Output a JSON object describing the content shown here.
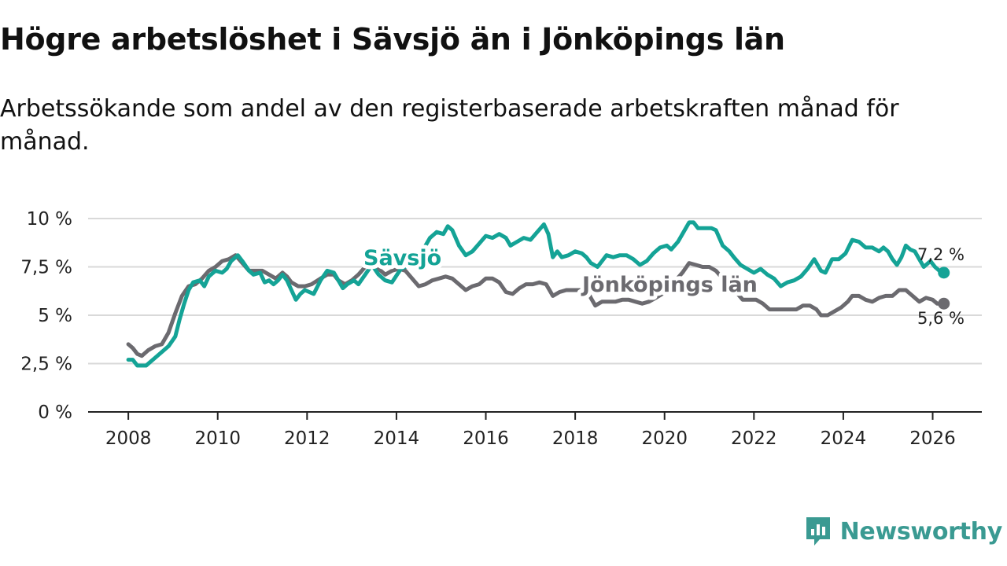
{
  "title": "Högre arbetslöshet i Sävsjö än i Jönköpings län",
  "subtitle": "Arbetssökande som andel av den registerbaserade arbetskraften månad för månad.",
  "brand": "Newsworthy",
  "colors": {
    "savsjo": "#14a396",
    "lan": "#6b6a6f",
    "brand": "#3a9a92"
  },
  "chart_data": {
    "type": "line",
    "title": "Högre arbetslöshet i Sävsjö än i Jönköpings län",
    "xlabel": "",
    "ylabel": "",
    "xlim": [
      2007.1,
      2027.1
    ],
    "ylim": [
      0,
      10
    ],
    "yticks": [
      0,
      2.5,
      5,
      7.5,
      10
    ],
    "ytick_labels": [
      "0 %",
      "2,5 %",
      "5 %",
      "7,5 %",
      "10 %"
    ],
    "xticks": [
      2008,
      2010,
      2012,
      2014,
      2016,
      2018,
      2020,
      2022,
      2024,
      2026
    ],
    "xtick_labels": [
      "2008",
      "2010",
      "2012",
      "2014",
      "2016",
      "2018",
      "2020",
      "2022",
      "2024",
      "2026"
    ],
    "grid": true,
    "series": [
      {
        "name": "Sävsjö",
        "key": "savsjo",
        "end_label": "7,2 %",
        "points": [
          [
            2008.0,
            2.7
          ],
          [
            2008.1,
            2.7
          ],
          [
            2008.2,
            2.4
          ],
          [
            2008.3,
            2.4
          ],
          [
            2008.4,
            2.4
          ],
          [
            2008.5,
            2.6
          ],
          [
            2008.6,
            2.8
          ],
          [
            2008.75,
            3.1
          ],
          [
            2008.9,
            3.4
          ],
          [
            2009.05,
            3.9
          ],
          [
            2009.15,
            4.8
          ],
          [
            2009.25,
            5.6
          ],
          [
            2009.35,
            6.3
          ],
          [
            2009.45,
            6.7
          ],
          [
            2009.6,
            6.8
          ],
          [
            2009.7,
            6.5
          ],
          [
            2009.8,
            7.0
          ],
          [
            2009.95,
            7.3
          ],
          [
            2010.1,
            7.2
          ],
          [
            2010.2,
            7.4
          ],
          [
            2010.3,
            7.8
          ],
          [
            2010.45,
            8.1
          ],
          [
            2010.55,
            7.8
          ],
          [
            2010.7,
            7.3
          ],
          [
            2010.8,
            7.1
          ],
          [
            2010.95,
            7.2
          ],
          [
            2011.05,
            6.7
          ],
          [
            2011.15,
            6.8
          ],
          [
            2011.25,
            6.6
          ],
          [
            2011.35,
            6.8
          ],
          [
            2011.45,
            7.1
          ],
          [
            2011.55,
            6.8
          ],
          [
            2011.65,
            6.3
          ],
          [
            2011.75,
            5.8
          ],
          [
            2011.85,
            6.1
          ],
          [
            2011.95,
            6.3
          ],
          [
            2012.05,
            6.2
          ],
          [
            2012.15,
            6.1
          ],
          [
            2012.3,
            6.8
          ],
          [
            2012.45,
            7.3
          ],
          [
            2012.6,
            7.2
          ],
          [
            2012.7,
            6.8
          ],
          [
            2012.8,
            6.4
          ],
          [
            2012.9,
            6.6
          ],
          [
            2013.05,
            6.8
          ],
          [
            2013.15,
            6.6
          ],
          [
            2013.3,
            7.1
          ],
          [
            2013.45,
            7.6
          ],
          [
            2013.6,
            7.1
          ],
          [
            2013.75,
            6.8
          ],
          [
            2013.9,
            6.7
          ],
          [
            2014.1,
            7.4
          ],
          [
            2014.3,
            7.6
          ],
          [
            2014.6,
            8.4
          ],
          [
            2014.75,
            9.0
          ],
          [
            2014.9,
            9.3
          ],
          [
            2015.05,
            9.2
          ],
          [
            2015.15,
            9.6
          ],
          [
            2015.25,
            9.4
          ],
          [
            2015.4,
            8.6
          ],
          [
            2015.55,
            8.1
          ],
          [
            2015.7,
            8.3
          ],
          [
            2015.85,
            8.7
          ],
          [
            2016.0,
            9.1
          ],
          [
            2016.15,
            9.0
          ],
          [
            2016.3,
            9.2
          ],
          [
            2016.45,
            9.0
          ],
          [
            2016.55,
            8.6
          ],
          [
            2016.7,
            8.8
          ],
          [
            2016.85,
            9.0
          ],
          [
            2017.0,
            8.9
          ],
          [
            2017.15,
            9.3
          ],
          [
            2017.3,
            9.7
          ],
          [
            2017.4,
            9.2
          ],
          [
            2017.5,
            8.0
          ],
          [
            2017.6,
            8.3
          ],
          [
            2017.7,
            8.0
          ],
          [
            2017.85,
            8.1
          ],
          [
            2018.0,
            8.3
          ],
          [
            2018.15,
            8.2
          ],
          [
            2018.25,
            8.0
          ],
          [
            2018.35,
            7.7
          ],
          [
            2018.5,
            7.5
          ],
          [
            2018.6,
            7.8
          ],
          [
            2018.7,
            8.1
          ],
          [
            2018.85,
            8.0
          ],
          [
            2019.0,
            8.1
          ],
          [
            2019.15,
            8.1
          ],
          [
            2019.3,
            7.9
          ],
          [
            2019.45,
            7.6
          ],
          [
            2019.6,
            7.8
          ],
          [
            2019.75,
            8.2
          ],
          [
            2019.9,
            8.5
          ],
          [
            2020.05,
            8.6
          ],
          [
            2020.15,
            8.4
          ],
          [
            2020.3,
            8.8
          ],
          [
            2020.45,
            9.4
          ],
          [
            2020.55,
            9.8
          ],
          [
            2020.65,
            9.8
          ],
          [
            2020.75,
            9.5
          ],
          [
            2020.9,
            9.5
          ],
          [
            2021.05,
            9.5
          ],
          [
            2021.15,
            9.4
          ],
          [
            2021.3,
            8.6
          ],
          [
            2021.45,
            8.3
          ],
          [
            2021.55,
            8.0
          ],
          [
            2021.7,
            7.6
          ],
          [
            2021.85,
            7.4
          ],
          [
            2022.0,
            7.2
          ],
          [
            2022.15,
            7.4
          ],
          [
            2022.3,
            7.1
          ],
          [
            2022.45,
            6.9
          ],
          [
            2022.6,
            6.5
          ],
          [
            2022.75,
            6.7
          ],
          [
            2022.9,
            6.8
          ],
          [
            2023.05,
            7.0
          ],
          [
            2023.2,
            7.4
          ],
          [
            2023.35,
            7.9
          ],
          [
            2023.5,
            7.3
          ],
          [
            2023.6,
            7.2
          ],
          [
            2023.75,
            7.9
          ],
          [
            2023.9,
            7.9
          ],
          [
            2024.05,
            8.2
          ],
          [
            2024.2,
            8.9
          ],
          [
            2024.35,
            8.8
          ],
          [
            2024.5,
            8.5
          ],
          [
            2024.65,
            8.5
          ],
          [
            2024.8,
            8.3
          ],
          [
            2024.9,
            8.5
          ],
          [
            2025.0,
            8.3
          ],
          [
            2025.1,
            7.9
          ],
          [
            2025.2,
            7.6
          ],
          [
            2025.3,
            8.0
          ],
          [
            2025.4,
            8.6
          ],
          [
            2025.5,
            8.4
          ],
          [
            2025.6,
            8.3
          ],
          [
            2025.7,
            7.9
          ],
          [
            2025.8,
            7.5
          ],
          [
            2025.95,
            7.8
          ],
          [
            2026.05,
            7.5
          ],
          [
            2026.15,
            7.3
          ],
          [
            2026.25,
            7.2
          ]
        ]
      },
      {
        "name": "Jönköpings län",
        "key": "lan",
        "end_label": "5,6 %",
        "points": [
          [
            2008.0,
            3.5
          ],
          [
            2008.1,
            3.3
          ],
          [
            2008.2,
            3.0
          ],
          [
            2008.3,
            2.9
          ],
          [
            2008.45,
            3.2
          ],
          [
            2008.6,
            3.4
          ],
          [
            2008.75,
            3.5
          ],
          [
            2008.9,
            4.1
          ],
          [
            2009.05,
            5.1
          ],
          [
            2009.2,
            6.0
          ],
          [
            2009.35,
            6.5
          ],
          [
            2009.5,
            6.6
          ],
          [
            2009.65,
            6.9
          ],
          [
            2009.8,
            7.3
          ],
          [
            2009.95,
            7.5
          ],
          [
            2010.1,
            7.8
          ],
          [
            2010.25,
            7.9
          ],
          [
            2010.4,
            8.1
          ],
          [
            2010.55,
            7.7
          ],
          [
            2010.7,
            7.3
          ],
          [
            2010.85,
            7.3
          ],
          [
            2011.0,
            7.3
          ],
          [
            2011.15,
            7.1
          ],
          [
            2011.3,
            6.9
          ],
          [
            2011.45,
            7.2
          ],
          [
            2011.55,
            7.0
          ],
          [
            2011.65,
            6.7
          ],
          [
            2011.8,
            6.5
          ],
          [
            2011.95,
            6.5
          ],
          [
            2012.1,
            6.6
          ],
          [
            2012.3,
            6.9
          ],
          [
            2012.45,
            7.1
          ],
          [
            2012.6,
            7.1
          ],
          [
            2012.7,
            6.8
          ],
          [
            2012.85,
            6.6
          ],
          [
            2013.0,
            6.8
          ],
          [
            2013.15,
            7.1
          ],
          [
            2013.3,
            7.5
          ],
          [
            2013.45,
            7.6
          ],
          [
            2013.6,
            7.4
          ],
          [
            2013.75,
            7.1
          ],
          [
            2013.9,
            7.3
          ],
          [
            2014.05,
            7.4
          ],
          [
            2014.2,
            7.3
          ],
          [
            2014.35,
            6.9
          ],
          [
            2014.5,
            6.5
          ],
          [
            2014.65,
            6.6
          ],
          [
            2014.8,
            6.8
          ],
          [
            2014.95,
            6.9
          ],
          [
            2015.1,
            7.0
          ],
          [
            2015.25,
            6.9
          ],
          [
            2015.4,
            6.6
          ],
          [
            2015.55,
            6.3
          ],
          [
            2015.7,
            6.5
          ],
          [
            2015.85,
            6.6
          ],
          [
            2016.0,
            6.9
          ],
          [
            2016.15,
            6.9
          ],
          [
            2016.3,
            6.7
          ],
          [
            2016.45,
            6.2
          ],
          [
            2016.6,
            6.1
          ],
          [
            2016.75,
            6.4
          ],
          [
            2016.9,
            6.6
          ],
          [
            2017.05,
            6.6
          ],
          [
            2017.2,
            6.7
          ],
          [
            2017.35,
            6.6
          ],
          [
            2017.5,
            6.0
          ],
          [
            2017.65,
            6.2
          ],
          [
            2017.8,
            6.3
          ],
          [
            2017.95,
            6.3
          ],
          [
            2018.1,
            6.3
          ],
          [
            2018.25,
            6.4
          ],
          [
            2018.35,
            5.9
          ],
          [
            2018.45,
            5.5
          ],
          [
            2018.6,
            5.7
          ],
          [
            2018.75,
            5.7
          ],
          [
            2018.9,
            5.7
          ],
          [
            2019.05,
            5.8
          ],
          [
            2019.2,
            5.8
          ],
          [
            2019.35,
            5.7
          ],
          [
            2019.5,
            5.6
          ],
          [
            2019.65,
            5.7
          ],
          [
            2019.8,
            5.9
          ],
          [
            2019.95,
            6.1
          ],
          [
            2020.1,
            6.3
          ],
          [
            2020.25,
            6.8
          ],
          [
            2020.4,
            7.2
          ],
          [
            2020.55,
            7.7
          ],
          [
            2020.7,
            7.6
          ],
          [
            2020.85,
            7.5
          ],
          [
            2021.0,
            7.5
          ],
          [
            2021.15,
            7.3
          ],
          [
            2021.3,
            6.9
          ],
          [
            2021.45,
            6.5
          ],
          [
            2021.6,
            6.2
          ],
          [
            2021.75,
            5.8
          ],
          [
            2021.9,
            5.8
          ],
          [
            2022.05,
            5.8
          ],
          [
            2022.2,
            5.6
          ],
          [
            2022.35,
            5.3
          ],
          [
            2022.5,
            5.3
          ],
          [
            2022.65,
            5.3
          ],
          [
            2022.8,
            5.3
          ],
          [
            2022.95,
            5.3
          ],
          [
            2023.1,
            5.5
          ],
          [
            2023.25,
            5.5
          ],
          [
            2023.4,
            5.3
          ],
          [
            2023.5,
            5.0
          ],
          [
            2023.65,
            5.0
          ],
          [
            2023.8,
            5.2
          ],
          [
            2023.95,
            5.4
          ],
          [
            2024.1,
            5.7
          ],
          [
            2024.2,
            6.0
          ],
          [
            2024.35,
            6.0
          ],
          [
            2024.5,
            5.8
          ],
          [
            2024.65,
            5.7
          ],
          [
            2024.8,
            5.9
          ],
          [
            2024.95,
            6.0
          ],
          [
            2025.1,
            6.0
          ],
          [
            2025.25,
            6.3
          ],
          [
            2025.4,
            6.3
          ],
          [
            2025.55,
            6.0
          ],
          [
            2025.7,
            5.7
          ],
          [
            2025.85,
            5.9
          ],
          [
            2026.0,
            5.8
          ],
          [
            2026.1,
            5.6
          ],
          [
            2026.25,
            5.6
          ]
        ]
      }
    ]
  }
}
